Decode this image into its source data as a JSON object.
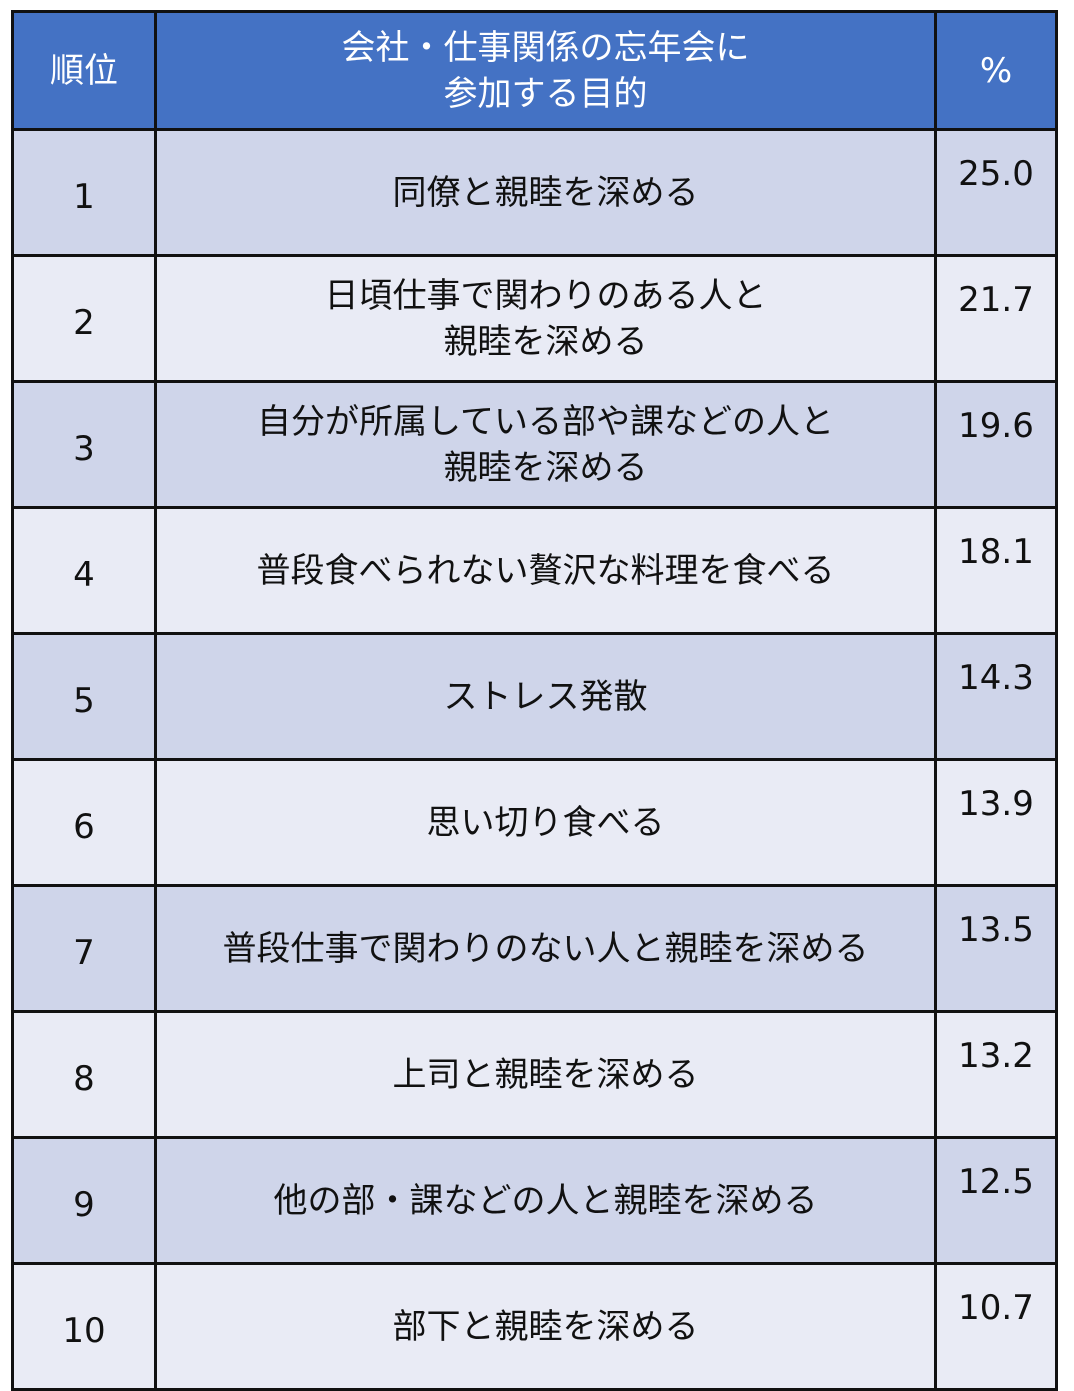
{
  "chart_data": {
    "type": "table",
    "columns": [
      "順位",
      "会社・仕事関係の忘年会に\n参加する目的",
      "%"
    ],
    "rows": [
      {
        "rank": "1",
        "purpose": "同僚と親睦を深める",
        "percent": "25.0"
      },
      {
        "rank": "2",
        "purpose": "日頃仕事で関わりのある人と\n親睦を深める",
        "percent": "21.7"
      },
      {
        "rank": "3",
        "purpose": "自分が所属している部や課などの人と\n親睦を深める",
        "percent": "19.6"
      },
      {
        "rank": "4",
        "purpose": "普段食べられない贅沢な料理を食べる",
        "percent": "18.1"
      },
      {
        "rank": "5",
        "purpose": "ストレス発散",
        "percent": "14.3"
      },
      {
        "rank": "6",
        "purpose": "思い切り食べる",
        "percent": "13.9"
      },
      {
        "rank": "7",
        "purpose": "普段仕事で関わりのない人と親睦を深める",
        "percent": "13.5"
      },
      {
        "rank": "8",
        "purpose": "上司と親睦を深める",
        "percent": "13.2"
      },
      {
        "rank": "9",
        "purpose": "他の部・課などの人と親睦を深める",
        "percent": "12.5"
      },
      {
        "rank": "10",
        "purpose": "部下と親睦を深める",
        "percent": "10.7"
      }
    ],
    "colors": {
      "header": "#4472C4",
      "row_odd": "#CFD5EA",
      "row_even": "#E9EBF5"
    }
  }
}
